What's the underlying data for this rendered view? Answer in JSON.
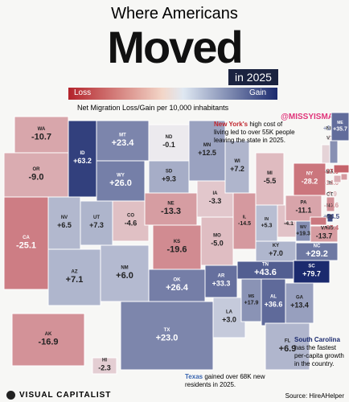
{
  "header": {
    "title_line1": "Where Americans",
    "title_main": "Moved",
    "year": "in 2025"
  },
  "legend": {
    "loss": "Loss",
    "gain": "Gain"
  },
  "subtitle": "Net Migration Loss/Gain per 10,000 inhabitants",
  "handle": "@MISSYISMAGA",
  "annotations": {
    "new_york": {
      "highlight": "New York's",
      "text": "high cost of living led to over 55K people leaving the state in 2025."
    },
    "south_carolina": {
      "highlight": "South Carolina",
      "text": "has the fastest per-capita growth in the country."
    },
    "texas": {
      "highlight": "Texas",
      "text": "gained over 68K new residents in 2025."
    }
  },
  "footer": {
    "brand": "VISUAL CAPITALIST",
    "source": "Source: HireAHelper"
  },
  "chart_data": {
    "type": "choropleth",
    "loss_color": "#b3232b",
    "gain_color": "#1b2a6e",
    "neutral_color": "#eef1f5",
    "categories": [
      "WA",
      "OR",
      "CA",
      "NV",
      "ID",
      "MT",
      "WY",
      "UT",
      "AZ",
      "CO",
      "NM",
      "ND",
      "SD",
      "NE",
      "KS",
      "OK",
      "TX",
      "MN",
      "IA",
      "MO",
      "AR",
      "LA",
      "WI",
      "IL",
      "MI",
      "IN",
      "OH",
      "KY",
      "TN",
      "MS",
      "AL",
      "GA",
      "FL",
      "SC",
      "NC",
      "VA",
      "WV",
      "PA",
      "NY",
      "VT",
      "NH",
      "ME",
      "MA",
      "RI",
      "CT",
      "NJ",
      "DE",
      "MD",
      "AK",
      "HI"
    ],
    "values": [
      -10.7,
      -9.0,
      -25.1,
      6.5,
      63.2,
      23.4,
      26.0,
      7.3,
      7.1,
      -4.6,
      6.0,
      -0.1,
      9.3,
      -13.3,
      -19.6,
      26.4,
      23.0,
      12.5,
      -3.3,
      -5.0,
      33.3,
      3.0,
      7.2,
      -14.5,
      -5.5,
      5.3,
      -4.1,
      7.0,
      43.6,
      17.9,
      36.6,
      13.4,
      6.9,
      79.7,
      29.2,
      -13.7,
      19.3,
      -11.1,
      -28.2,
      -1.7,
      18.8,
      35.7,
      -37.9,
      -14.0,
      -7.9,
      -17.6,
      54.5,
      -27.4,
      -16.9,
      -2.3
    ],
    "value_labels": [
      "-10.7",
      "-9.0",
      "-25.1",
      "+6.5",
      "+63.2",
      "+23.4",
      "+26.0",
      "+7.3",
      "+7.1",
      "-4.6",
      "+6.0",
      "-0.1",
      "+9.3",
      "-13.3",
      "-19.6",
      "+26.4",
      "+23.0",
      "+12.5",
      "-3.3",
      "-5.0",
      "+33.3",
      "+3.0",
      "+7.2",
      "-14.5",
      "-5.5",
      "+5.3",
      "-4.1",
      "+7.0",
      "+43.6",
      "+17.9",
      "+36.6",
      "+13.4",
      "+6.9",
      "+79.7",
      "+29.2",
      "-13.7",
      "+19.3",
      "-11.1",
      "-28.2",
      "-1.7",
      "+18.8",
      "+35.7",
      "-37.9",
      "-14.0",
      "-7.9",
      "-17.6",
      "+54.5",
      "-27.4",
      "-16.9",
      "-2.3"
    ]
  }
}
